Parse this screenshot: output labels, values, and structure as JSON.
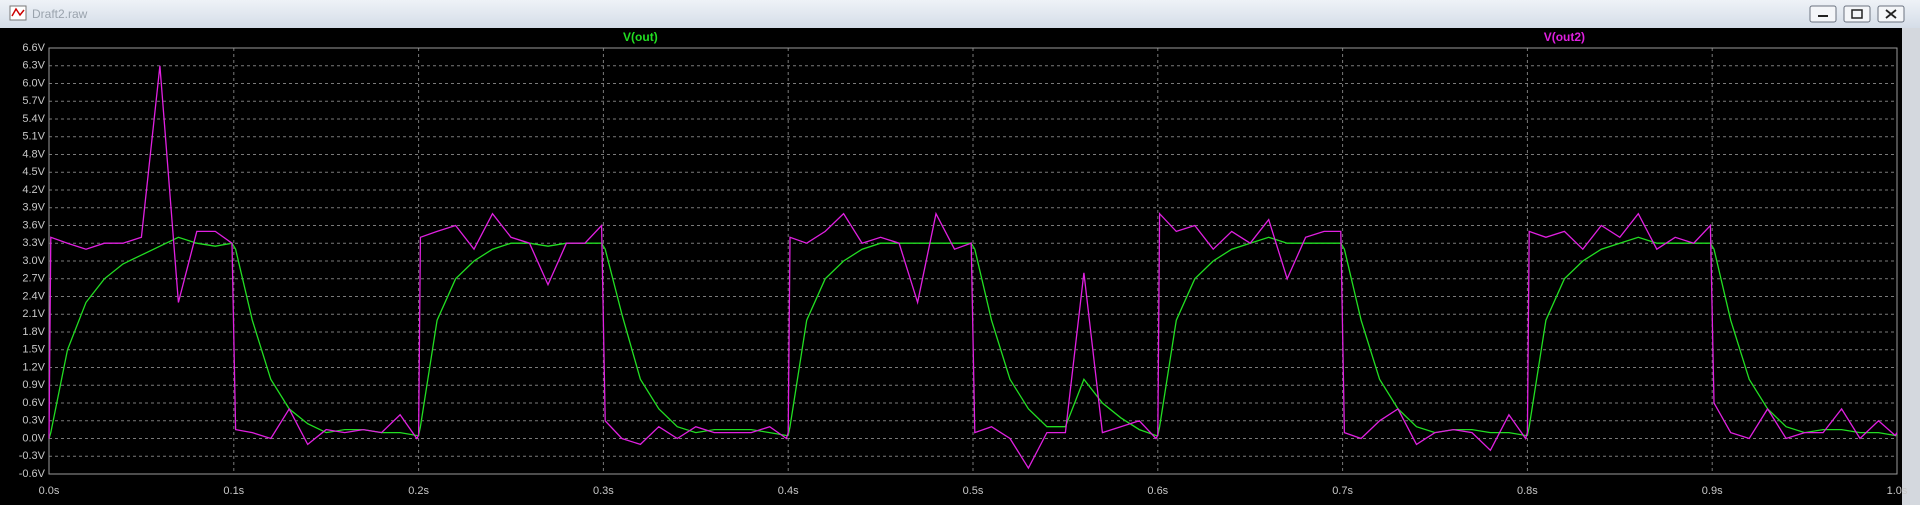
{
  "window_title": "Draft2.raw",
  "chart_data": {
    "type": "line",
    "x": [
      0,
      0.001,
      0.01,
      0.02,
      0.03,
      0.04,
      0.05,
      0.06,
      0.07,
      0.08,
      0.09,
      0.099,
      0.101,
      0.11,
      0.12,
      0.13,
      0.14,
      0.15,
      0.16,
      0.17,
      0.18,
      0.19,
      0.199,
      0.2,
      0.201,
      0.21,
      0.22,
      0.23,
      0.24,
      0.25,
      0.26,
      0.27,
      0.28,
      0.29,
      0.299,
      0.301,
      0.31,
      0.32,
      0.33,
      0.34,
      0.35,
      0.36,
      0.37,
      0.38,
      0.39,
      0.399,
      0.4,
      0.401,
      0.41,
      0.42,
      0.43,
      0.44,
      0.45,
      0.46,
      0.47,
      0.48,
      0.49,
      0.499,
      0.501,
      0.51,
      0.52,
      0.53,
      0.54,
      0.55,
      0.56,
      0.57,
      0.58,
      0.59,
      0.599,
      0.6,
      0.601,
      0.61,
      0.62,
      0.63,
      0.64,
      0.65,
      0.66,
      0.67,
      0.68,
      0.69,
      0.699,
      0.701,
      0.71,
      0.72,
      0.73,
      0.74,
      0.75,
      0.76,
      0.77,
      0.78,
      0.79,
      0.799,
      0.8,
      0.801,
      0.81,
      0.82,
      0.83,
      0.84,
      0.85,
      0.86,
      0.87,
      0.88,
      0.89,
      0.899,
      0.901,
      0.91,
      0.92,
      0.93,
      0.94,
      0.95,
      0.96,
      0.97,
      0.98,
      0.99,
      0.999,
      1.0
    ],
    "series": [
      {
        "name": "V(out)",
        "color": "#22dd22",
        "values": [
          0,
          0.1,
          1.5,
          2.3,
          2.7,
          2.95,
          3.1,
          3.25,
          3.4,
          3.3,
          3.25,
          3.3,
          3.2,
          2.0,
          1.0,
          0.5,
          0.25,
          0.1,
          0.15,
          0.15,
          0.1,
          0.1,
          0.05,
          0.05,
          0.2,
          2.0,
          2.7,
          3.0,
          3.2,
          3.3,
          3.3,
          3.25,
          3.3,
          3.3,
          3.3,
          3.2,
          2.1,
          1.0,
          0.5,
          0.2,
          0.1,
          0.15,
          0.15,
          0.15,
          0.1,
          0.05,
          0.05,
          0.2,
          2.0,
          2.7,
          3.0,
          3.2,
          3.3,
          3.3,
          3.3,
          3.3,
          3.3,
          3.3,
          3.2,
          2.0,
          1.0,
          0.5,
          0.2,
          0.2,
          1.0,
          0.6,
          0.35,
          0.15,
          0.05,
          0.05,
          0.2,
          2.0,
          2.7,
          3.0,
          3.2,
          3.3,
          3.4,
          3.3,
          3.3,
          3.3,
          3.3,
          3.2,
          2.0,
          1.0,
          0.5,
          0.2,
          0.1,
          0.15,
          0.15,
          0.1,
          0.1,
          0.05,
          0.05,
          0.2,
          2.0,
          2.7,
          3.0,
          3.2,
          3.3,
          3.4,
          3.3,
          3.3,
          3.3,
          3.3,
          3.2,
          2.0,
          1.0,
          0.5,
          0.2,
          0.1,
          0.15,
          0.15,
          0.1,
          0.1,
          0.05,
          0.05
        ]
      },
      {
        "name": "V(out2)",
        "color": "#e020e0",
        "values": [
          0.0,
          3.4,
          3.3,
          3.2,
          3.3,
          3.3,
          3.4,
          6.3,
          2.3,
          3.5,
          3.5,
          3.3,
          0.15,
          0.1,
          0.0,
          0.5,
          -0.1,
          0.15,
          0.1,
          0.15,
          0.1,
          0.4,
          0.0,
          0.05,
          3.4,
          3.5,
          3.6,
          3.2,
          3.8,
          3.4,
          3.3,
          2.6,
          3.3,
          3.3,
          3.6,
          0.3,
          0.0,
          -0.1,
          0.2,
          0.0,
          0.2,
          0.1,
          0.1,
          0.1,
          0.2,
          0.0,
          0.1,
          3.4,
          3.3,
          3.5,
          3.8,
          3.3,
          3.4,
          3.3,
          2.3,
          3.8,
          3.2,
          3.3,
          0.1,
          0.2,
          0.0,
          -0.5,
          0.1,
          0.1,
          2.8,
          0.1,
          0.2,
          0.3,
          0.0,
          0.05,
          3.8,
          3.5,
          3.6,
          3.2,
          3.5,
          3.3,
          3.7,
          2.7,
          3.4,
          3.5,
          3.5,
          0.1,
          0.0,
          0.3,
          0.5,
          -0.1,
          0.1,
          0.15,
          0.1,
          -0.2,
          0.4,
          0.0,
          0.1,
          3.5,
          3.4,
          3.5,
          3.2,
          3.6,
          3.4,
          3.8,
          3.2,
          3.4,
          3.3,
          3.6,
          0.6,
          0.1,
          0.0,
          0.5,
          0.0,
          0.1,
          0.1,
          0.5,
          0.0,
          0.3,
          0.05,
          0.1
        ]
      }
    ],
    "xlim": [
      0,
      1
    ],
    "ylim": [
      -0.6,
      6.6
    ],
    "xticks": [
      {
        "value": 0,
        "label": "0.0s"
      },
      {
        "value": 0.1,
        "label": "0.1s"
      },
      {
        "value": 0.2,
        "label": "0.2s"
      },
      {
        "value": 0.3,
        "label": "0.3s"
      },
      {
        "value": 0.4,
        "label": "0.4s"
      },
      {
        "value": 0.5,
        "label": "0.5s"
      },
      {
        "value": 0.6,
        "label": "0.6s"
      },
      {
        "value": 0.7,
        "label": "0.7s"
      },
      {
        "value": 0.8,
        "label": "0.8s"
      },
      {
        "value": 0.9,
        "label": "0.9s"
      },
      {
        "value": 1,
        "label": "1.0s"
      }
    ],
    "yticks": [
      {
        "value": -0.6,
        "label": "-0.6V"
      },
      {
        "value": -0.3,
        "label": "-0.3V"
      },
      {
        "value": 0,
        "label": "0.0V"
      },
      {
        "value": 0.3,
        "label": "0.3V"
      },
      {
        "value": 0.6,
        "label": "0.6V"
      },
      {
        "value": 0.9,
        "label": "0.9V"
      },
      {
        "value": 1.2,
        "label": "1.2V"
      },
      {
        "value": 1.5,
        "label": "1.5V"
      },
      {
        "value": 1.8,
        "label": "1.8V"
      },
      {
        "value": 2.1,
        "label": "2.1V"
      },
      {
        "value": 2.4,
        "label": "2.4V"
      },
      {
        "value": 2.7,
        "label": "2.7V"
      },
      {
        "value": 3.0,
        "label": "3.0V"
      },
      {
        "value": 3.3,
        "label": "3.3V"
      },
      {
        "value": 3.6,
        "label": "3.6V"
      },
      {
        "value": 3.9,
        "label": "3.9V"
      },
      {
        "value": 4.2,
        "label": "4.2V"
      },
      {
        "value": 4.5,
        "label": "4.5V"
      },
      {
        "value": 4.8,
        "label": "4.8V"
      },
      {
        "value": 5.1,
        "label": "5.1V"
      },
      {
        "value": 5.4,
        "label": "5.4V"
      },
      {
        "value": 5.7,
        "label": "5.7V"
      },
      {
        "value": 6.0,
        "label": "6.0V"
      },
      {
        "value": 6.3,
        "label": "6.3V"
      },
      {
        "value": 6.6,
        "label": "6.6V"
      }
    ],
    "grid": true
  }
}
